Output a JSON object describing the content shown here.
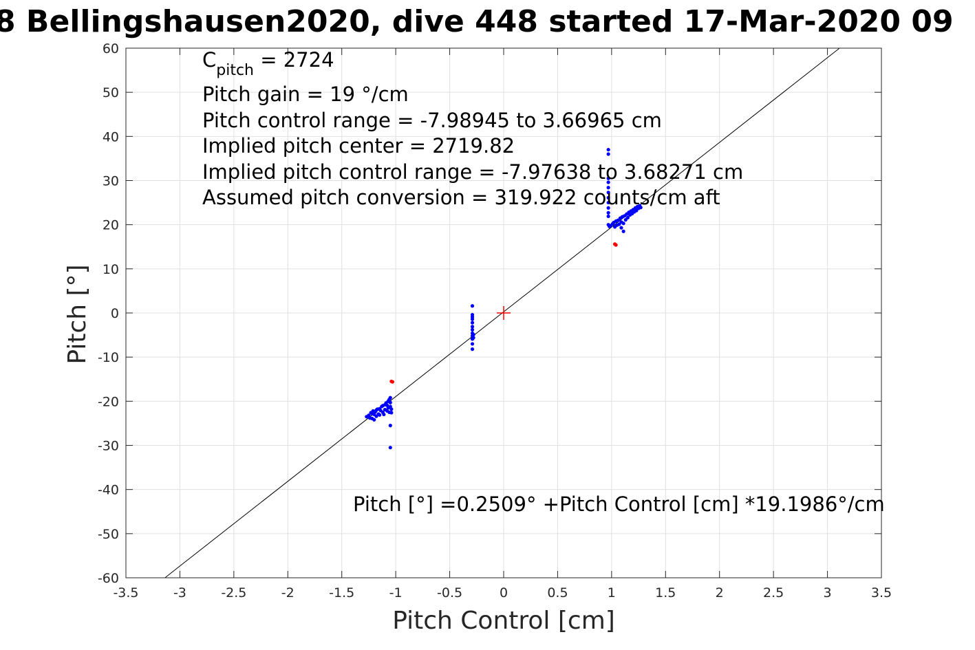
{
  "chart_data": {
    "type": "scatter",
    "title": "8 Bellingshausen2020, dive 448 started 17-Mar-2020 09",
    "xlabel": "Pitch Control [cm]",
    "ylabel": "Pitch [°]",
    "xlim": [
      -3.5,
      3.5
    ],
    "ylim": [
      -60,
      60
    ],
    "xticks": [
      "-3.5",
      "-3",
      "-2.5",
      "-2",
      "-1.5",
      "-1",
      "-0.5",
      "0",
      "0.5",
      "1",
      "1.5",
      "2",
      "2.5",
      "3",
      "3.5"
    ],
    "yticks": [
      "-60",
      "-50",
      "-40",
      "-30",
      "-20",
      "-10",
      "0",
      "10",
      "20",
      "30",
      "40",
      "50",
      "60"
    ],
    "grid": true,
    "annotations": {
      "c_pitch_main": "C",
      "c_pitch_sub": "pitch",
      "c_pitch_value": " = 2724",
      "pitch_gain": "Pitch gain = 19 °/cm",
      "control_range": "Pitch control range = -7.98945 to 3.66965 cm",
      "implied_center": "Implied pitch center = 2719.82",
      "implied_range": "Implied pitch control range = -7.97638 to 3.68271 cm",
      "conversion": "Assumed pitch conversion = 319.922 counts/cm aft",
      "fit_equation": "Pitch [°] =0.2509° +Pitch Control [cm] *19.1986°/cm"
    },
    "fit_line": {
      "intercept": 0.2509,
      "slope": 19.1986,
      "color": "#000000"
    },
    "center_marker": {
      "x": 0,
      "y": 0,
      "color": "#ff0000"
    },
    "series": [
      {
        "color": "#0000ff",
        "points": [
          [
            -1.27,
            -23.5
          ],
          [
            -1.25,
            -23.2
          ],
          [
            -1.24,
            -23.8
          ],
          [
            -1.23,
            -22.6
          ],
          [
            -1.22,
            -23.9
          ],
          [
            -1.22,
            -22.8
          ],
          [
            -1.21,
            -22.2
          ],
          [
            -1.2,
            -24.2
          ],
          [
            -1.2,
            -23.0
          ],
          [
            -1.19,
            -22.4
          ],
          [
            -1.18,
            -22.0
          ],
          [
            -1.18,
            -23.4
          ],
          [
            -1.17,
            -21.8
          ],
          [
            -1.16,
            -22.9
          ],
          [
            -1.15,
            -21.7
          ],
          [
            -1.15,
            -23.1
          ],
          [
            -1.14,
            -22.1
          ],
          [
            -1.13,
            -21.2
          ],
          [
            -1.12,
            -22.5
          ],
          [
            -1.12,
            -21.0
          ],
          [
            -1.11,
            -23.0
          ],
          [
            -1.1,
            -20.8
          ],
          [
            -1.1,
            -21.9
          ],
          [
            -1.09,
            -20.4
          ],
          [
            -1.08,
            -22.2
          ],
          [
            -1.08,
            -20.9
          ],
          [
            -1.07,
            -21.5
          ],
          [
            -1.07,
            -20.0
          ],
          [
            -1.06,
            -19.6
          ],
          [
            -1.06,
            -22.5
          ],
          [
            -1.05,
            -21.2
          ],
          [
            -1.05,
            -20.3
          ],
          [
            -1.05,
            -19.2
          ],
          [
            -1.04,
            -21.8
          ],
          [
            -1.04,
            -22.6
          ],
          [
            -1.05,
            -25.5
          ],
          [
            -1.05,
            -30.5
          ],
          [
            -0.29,
            1.6
          ],
          [
            -0.29,
            -0.4
          ],
          [
            -0.29,
            -0.9
          ],
          [
            -0.29,
            -1.4
          ],
          [
            -0.29,
            -2.2
          ],
          [
            -0.29,
            -3.1
          ],
          [
            -0.29,
            -3.8
          ],
          [
            -0.29,
            -4.6
          ],
          [
            -0.29,
            -5.2
          ],
          [
            -0.29,
            -5.9
          ],
          [
            -0.29,
            -7.0
          ],
          [
            -0.29,
            -8.2
          ],
          [
            -0.28,
            -4.9
          ],
          [
            -0.28,
            -5.6
          ],
          [
            0.97,
            37.0
          ],
          [
            0.97,
            36.0
          ],
          [
            0.97,
            30.5
          ],
          [
            0.97,
            29.6
          ],
          [
            0.97,
            28.4
          ],
          [
            0.97,
            27.3
          ],
          [
            0.97,
            26.1
          ],
          [
            0.97,
            25.0
          ],
          [
            0.97,
            23.8
          ],
          [
            0.97,
            22.7
          ],
          [
            0.97,
            21.9
          ],
          [
            0.97,
            20.0
          ],
          [
            0.98,
            19.6
          ],
          [
            0.99,
            19.8
          ],
          [
            1.01,
            20.2
          ],
          [
            1.02,
            20.5
          ],
          [
            1.03,
            19.5
          ],
          [
            1.04,
            20.8
          ],
          [
            1.05,
            19.9
          ],
          [
            1.06,
            21.0
          ],
          [
            1.07,
            20.1
          ],
          [
            1.08,
            21.5
          ],
          [
            1.09,
            19.3
          ],
          [
            1.09,
            20.6
          ],
          [
            1.1,
            21.8
          ],
          [
            1.11,
            20.3
          ],
          [
            1.11,
            18.5
          ],
          [
            1.12,
            22.0
          ],
          [
            1.13,
            21.1
          ],
          [
            1.14,
            22.4
          ],
          [
            1.15,
            21.6
          ],
          [
            1.16,
            22.8
          ],
          [
            1.17,
            22.2
          ],
          [
            1.18,
            23.1
          ],
          [
            1.19,
            22.5
          ],
          [
            1.2,
            23.4
          ],
          [
            1.21,
            22.9
          ],
          [
            1.22,
            23.8
          ],
          [
            1.23,
            23.2
          ],
          [
            1.24,
            24.1
          ],
          [
            1.25,
            23.7
          ],
          [
            1.26,
            24.3
          ],
          [
            1.27,
            23.9
          ]
        ]
      },
      {
        "color": "#ff0000",
        "points": [
          [
            -1.04,
            -15.5
          ],
          [
            -1.03,
            -15.6
          ],
          [
            1.04,
            15.4
          ],
          [
            1.03,
            15.6
          ]
        ]
      }
    ]
  }
}
